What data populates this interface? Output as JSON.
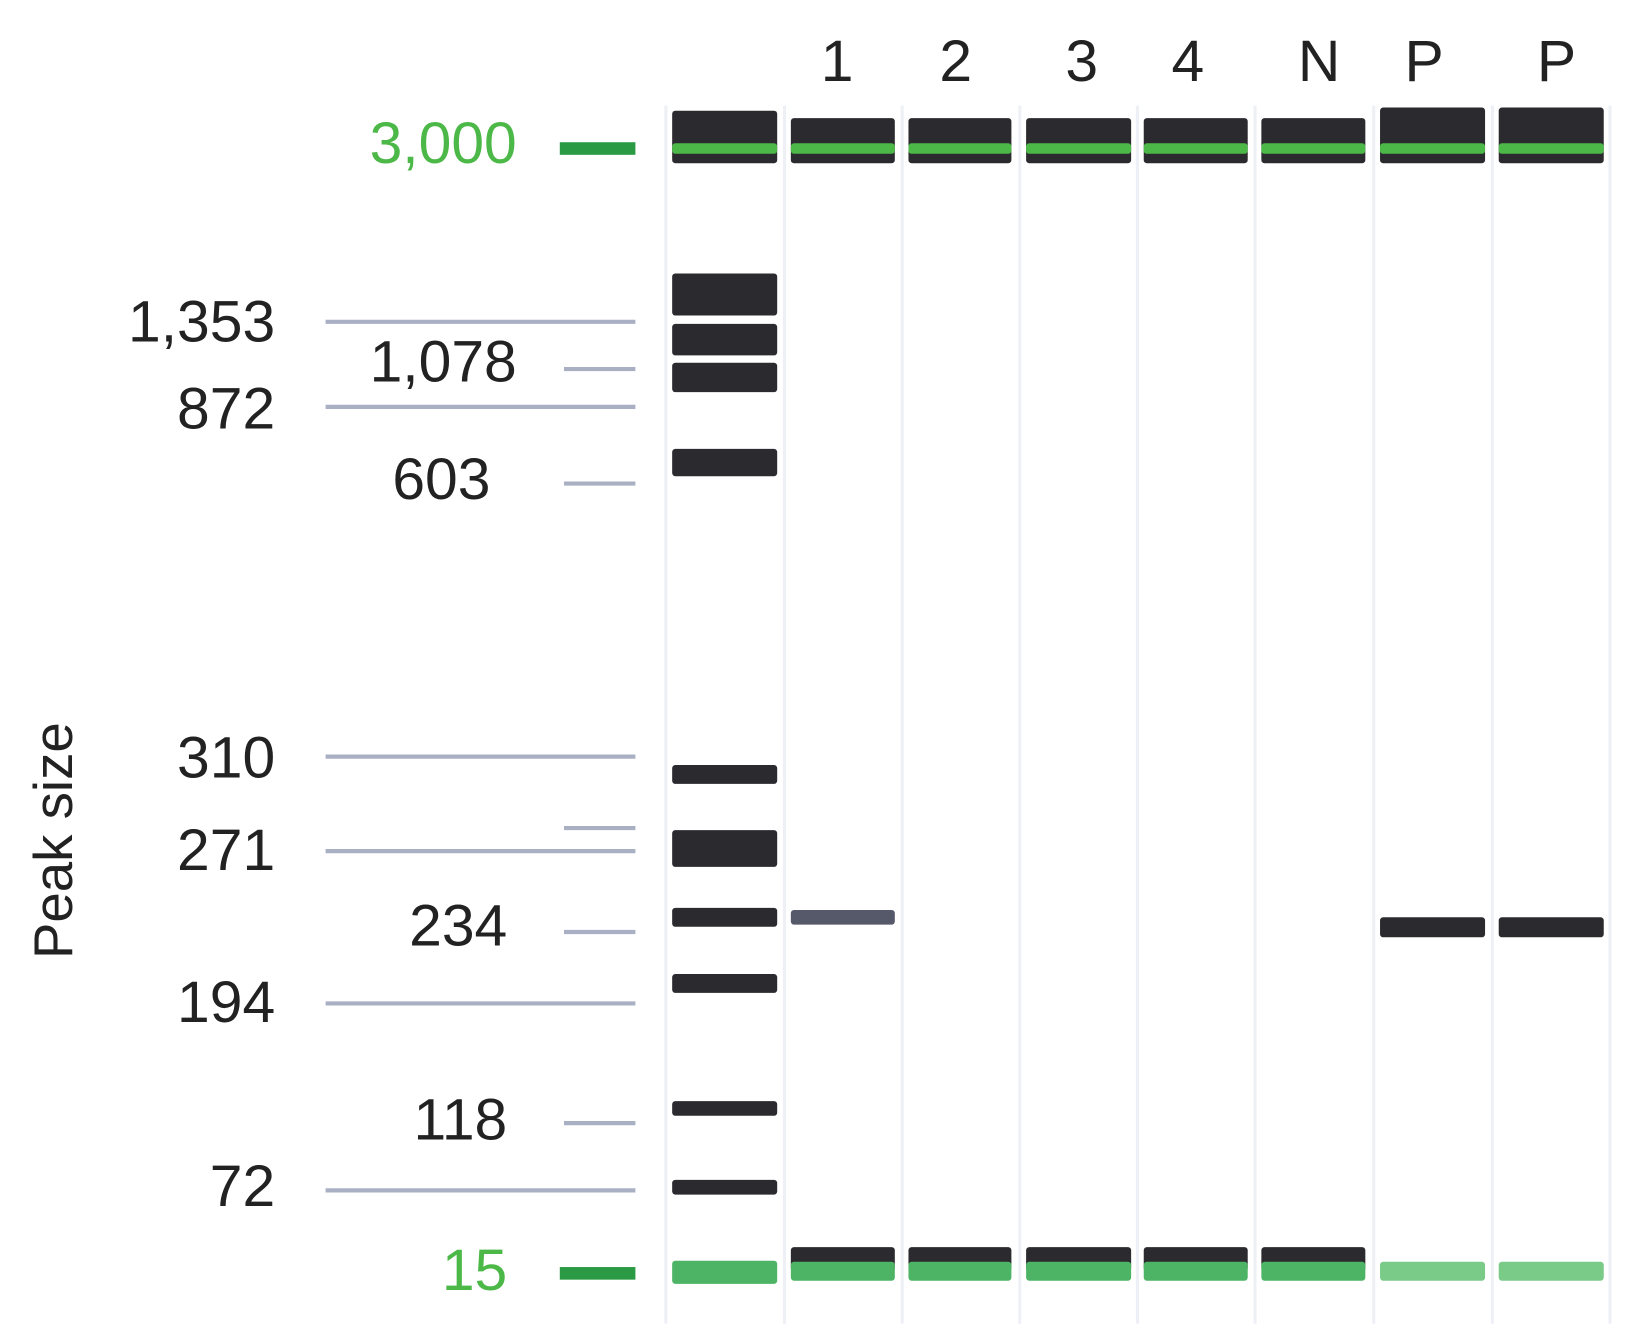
{
  "y_label": "Peak size",
  "markers": [
    {
      "label": "3,000"
    },
    {
      "label": "1,353"
    },
    {
      "label": "1,078"
    },
    {
      "label": "872"
    },
    {
      "label": "603"
    },
    {
      "label": "310"
    },
    {
      "label": "271"
    },
    {
      "label": "234"
    },
    {
      "label": "194"
    },
    {
      "label": "118"
    },
    {
      "label": "72"
    },
    {
      "label": "15"
    }
  ],
  "lanes": [
    {
      "label": "1"
    },
    {
      "label": "2"
    },
    {
      "label": "3"
    },
    {
      "label": "4"
    },
    {
      "label": "N"
    },
    {
      "label": "P"
    },
    {
      "label": "P"
    }
  ]
}
